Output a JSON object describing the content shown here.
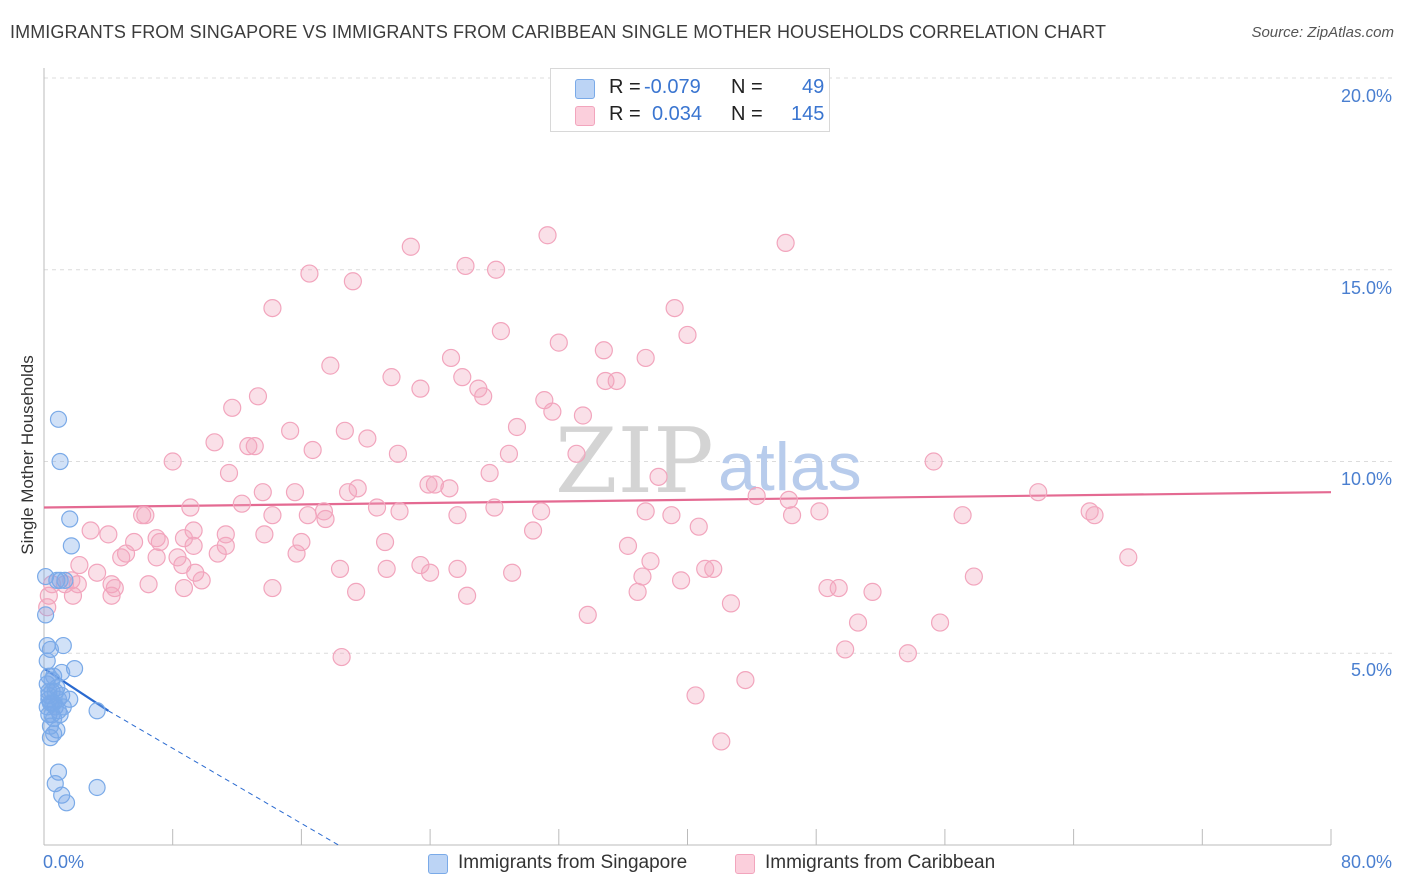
{
  "title": "IMMIGRANTS FROM SINGAPORE VS IMMIGRANTS FROM CARIBBEAN SINGLE MOTHER HOUSEHOLDS CORRELATION CHART",
  "source": "Source: ZipAtlas.com",
  "watermark": {
    "zip": "ZIP",
    "atlas": "atlas"
  },
  "legend": {
    "singapore": {
      "r_label": "R =",
      "r_value": "-0.079",
      "n_label": "N =",
      "n_value": "49"
    },
    "caribbean": {
      "r_label": "R =",
      "r_value": "0.034",
      "n_label": "N =",
      "n_value": "145"
    }
  },
  "colors": {
    "singapore": "#7aaae8",
    "singapore_line": "#2a6ad0",
    "caribbean": "#f2a5bd",
    "caribbean_line": "#e46a92"
  },
  "chart_data": {
    "type": "scatter",
    "title": "IMMIGRANTS FROM SINGAPORE VS IMMIGRANTS FROM CARIBBEAN SINGLE MOTHER HOUSEHOLDS CORRELATION CHART",
    "xlabel": "",
    "ylabel": "Single Mother Households",
    "xlim": [
      0,
      80
    ],
    "ylim": [
      0,
      20
    ],
    "x_tick_labels": [
      "0.0%",
      "80.0%"
    ],
    "y_ticks": [
      5,
      10,
      15,
      20
    ],
    "y_tick_labels": [
      "5.0%",
      "10.0%",
      "15.0%",
      "20.0%"
    ],
    "grid": true,
    "series": [
      {
        "name": "Immigrants from Singapore",
        "trend": {
          "x0": 0,
          "y0": 4.6,
          "x1": 4.0,
          "y1": 3.5,
          "dash_to_x": 18.3,
          "dash_to_y": 0
        },
        "points": [
          [
            0.9,
            11.1
          ],
          [
            1.0,
            10.0
          ],
          [
            1.6,
            8.5
          ],
          [
            1.7,
            7.8
          ],
          [
            0.1,
            7.0
          ],
          [
            1.0,
            6.9
          ],
          [
            1.3,
            6.9
          ],
          [
            0.8,
            6.9
          ],
          [
            0.1,
            6.0
          ],
          [
            1.2,
            5.2
          ],
          [
            0.2,
            5.2
          ],
          [
            0.4,
            5.1
          ],
          [
            1.9,
            4.6
          ],
          [
            1.1,
            4.5
          ],
          [
            0.6,
            4.4
          ],
          [
            0.3,
            4.4
          ],
          [
            0.2,
            4.2
          ],
          [
            0.8,
            4.1
          ],
          [
            0.5,
            4.0
          ],
          [
            0.3,
            4.0
          ],
          [
            1.1,
            3.9
          ],
          [
            0.9,
            3.8
          ],
          [
            1.6,
            3.8
          ],
          [
            0.6,
            3.7
          ],
          [
            0.4,
            3.7
          ],
          [
            0.2,
            3.6
          ],
          [
            0.7,
            3.6
          ],
          [
            1.0,
            3.4
          ],
          [
            0.3,
            3.4
          ],
          [
            0.5,
            3.4
          ],
          [
            3.3,
            3.5
          ],
          [
            0.8,
            3.0
          ],
          [
            0.6,
            2.9
          ],
          [
            0.4,
            2.8
          ],
          [
            0.9,
            1.9
          ],
          [
            0.7,
            1.6
          ],
          [
            3.3,
            1.5
          ],
          [
            1.1,
            1.3
          ],
          [
            1.4,
            1.1
          ],
          [
            0.2,
            4.8
          ],
          [
            0.3,
            3.9
          ],
          [
            0.5,
            4.3
          ],
          [
            0.9,
            3.5
          ],
          [
            0.6,
            3.3
          ],
          [
            0.4,
            3.1
          ],
          [
            1.2,
            3.6
          ],
          [
            0.3,
            3.8
          ],
          [
            0.7,
            4.0
          ],
          [
            0.5,
            3.7
          ]
        ]
      },
      {
        "name": "Immigrants from Caribbean",
        "trend": {
          "x0": 0,
          "y0": 8.8,
          "x1": 80,
          "y1": 9.2
        },
        "points": [
          [
            31.3,
            15.9
          ],
          [
            46.1,
            15.7
          ],
          [
            22.8,
            15.6
          ],
          [
            26.2,
            15.1
          ],
          [
            28.1,
            15.0
          ],
          [
            16.5,
            14.9
          ],
          [
            19.2,
            14.7
          ],
          [
            14.2,
            14.0
          ],
          [
            39.2,
            14.0
          ],
          [
            28.4,
            13.4
          ],
          [
            40.0,
            13.3
          ],
          [
            32.0,
            13.1
          ],
          [
            34.8,
            12.9
          ],
          [
            25.3,
            12.7
          ],
          [
            37.4,
            12.7
          ],
          [
            17.8,
            12.5
          ],
          [
            26.0,
            12.2
          ],
          [
            21.6,
            12.2
          ],
          [
            35.6,
            12.1
          ],
          [
            34.9,
            12.1
          ],
          [
            23.4,
            11.9
          ],
          [
            27.0,
            11.9
          ],
          [
            13.3,
            11.7
          ],
          [
            27.3,
            11.7
          ],
          [
            31.1,
            11.6
          ],
          [
            11.7,
            11.4
          ],
          [
            31.6,
            11.3
          ],
          [
            33.5,
            11.2
          ],
          [
            29.4,
            10.9
          ],
          [
            15.3,
            10.8
          ],
          [
            18.7,
            10.8
          ],
          [
            20.1,
            10.6
          ],
          [
            10.6,
            10.5
          ],
          [
            12.7,
            10.4
          ],
          [
            13.1,
            10.4
          ],
          [
            16.7,
            10.3
          ],
          [
            22.0,
            10.2
          ],
          [
            28.9,
            10.2
          ],
          [
            33.1,
            10.2
          ],
          [
            8.0,
            10.0
          ],
          [
            55.3,
            10.0
          ],
          [
            11.5,
            9.7
          ],
          [
            27.7,
            9.7
          ],
          [
            38.2,
            9.6
          ],
          [
            23.9,
            9.4
          ],
          [
            24.3,
            9.4
          ],
          [
            19.5,
            9.3
          ],
          [
            25.2,
            9.3
          ],
          [
            18.9,
            9.2
          ],
          [
            13.6,
            9.2
          ],
          [
            15.6,
            9.2
          ],
          [
            61.8,
            9.2
          ],
          [
            44.3,
            9.1
          ],
          [
            46.3,
            9.0
          ],
          [
            12.3,
            8.9
          ],
          [
            20.7,
            8.8
          ],
          [
            9.1,
            8.8
          ],
          [
            28.0,
            8.8
          ],
          [
            37.4,
            8.7
          ],
          [
            22.1,
            8.7
          ],
          [
            30.9,
            8.7
          ],
          [
            14.2,
            8.6
          ],
          [
            16.4,
            8.6
          ],
          [
            25.7,
            8.6
          ],
          [
            17.4,
            8.7
          ],
          [
            6.3,
            8.6
          ],
          [
            48.2,
            8.7
          ],
          [
            57.1,
            8.6
          ],
          [
            39.0,
            8.6
          ],
          [
            65.3,
            8.6
          ],
          [
            65.0,
            8.7
          ],
          [
            46.5,
            8.6
          ],
          [
            6.1,
            8.6
          ],
          [
            17.5,
            8.5
          ],
          [
            9.3,
            8.2
          ],
          [
            2.9,
            8.2
          ],
          [
            40.7,
            8.3
          ],
          [
            30.4,
            8.2
          ],
          [
            4.0,
            8.1
          ],
          [
            11.3,
            8.1
          ],
          [
            8.7,
            8.0
          ],
          [
            13.7,
            8.1
          ],
          [
            7.0,
            8.0
          ],
          [
            7.2,
            7.9
          ],
          [
            21.2,
            7.9
          ],
          [
            16.0,
            7.9
          ],
          [
            5.6,
            7.9
          ],
          [
            9.3,
            7.8
          ],
          [
            11.3,
            7.8
          ],
          [
            36.3,
            7.8
          ],
          [
            15.7,
            7.6
          ],
          [
            10.8,
            7.6
          ],
          [
            4.8,
            7.5
          ],
          [
            7.0,
            7.5
          ],
          [
            5.1,
            7.6
          ],
          [
            67.4,
            7.5
          ],
          [
            8.3,
            7.5
          ],
          [
            23.4,
            7.3
          ],
          [
            2.2,
            7.3
          ],
          [
            37.7,
            7.4
          ],
          [
            21.3,
            7.2
          ],
          [
            8.6,
            7.3
          ],
          [
            25.7,
            7.2
          ],
          [
            41.1,
            7.2
          ],
          [
            41.6,
            7.2
          ],
          [
            18.4,
            7.2
          ],
          [
            29.1,
            7.1
          ],
          [
            9.4,
            7.1
          ],
          [
            3.3,
            7.1
          ],
          [
            24.0,
            7.1
          ],
          [
            57.8,
            7.0
          ],
          [
            37.2,
            7.0
          ],
          [
            39.6,
            6.9
          ],
          [
            1.7,
            6.9
          ],
          [
            9.8,
            6.9
          ],
          [
            0.5,
            6.8
          ],
          [
            1.3,
            6.8
          ],
          [
            4.4,
            6.7
          ],
          [
            6.5,
            6.8
          ],
          [
            14.2,
            6.7
          ],
          [
            2.1,
            6.8
          ],
          [
            4.2,
            6.8
          ],
          [
            49.4,
            6.7
          ],
          [
            48.7,
            6.7
          ],
          [
            8.7,
            6.7
          ],
          [
            19.4,
            6.6
          ],
          [
            51.5,
            6.6
          ],
          [
            36.9,
            6.6
          ],
          [
            26.3,
            6.5
          ],
          [
            4.2,
            6.5
          ],
          [
            0.3,
            6.5
          ],
          [
            1.8,
            6.5
          ],
          [
            42.7,
            6.3
          ],
          [
            33.8,
            6.0
          ],
          [
            55.7,
            5.8
          ],
          [
            50.6,
            5.8
          ],
          [
            49.8,
            5.1
          ],
          [
            53.7,
            5.0
          ],
          [
            18.5,
            4.9
          ],
          [
            43.6,
            4.3
          ],
          [
            40.5,
            3.9
          ],
          [
            42.1,
            2.7
          ],
          [
            0.2,
            6.2
          ]
        ]
      }
    ]
  },
  "axis": {
    "x_min_label": "0.0%",
    "x_max_label": "80.0%",
    "y_labels": {
      "y5": "5.0%",
      "y10": "10.0%",
      "y15": "15.0%",
      "y20": "20.0%"
    },
    "ylabel": "Single Mother Households"
  },
  "bottom_legend": {
    "singapore": "Immigrants from Singapore",
    "caribbean": "Immigrants from Caribbean"
  }
}
